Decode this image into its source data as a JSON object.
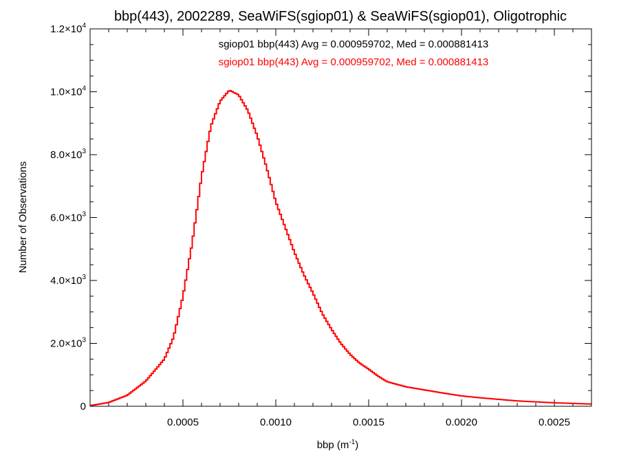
{
  "chart_data": {
    "type": "histogram",
    "title": "bbp(443), 2002289, SeaWiFS(sgiop01) & SeaWiFS(sgiop01), Oligotrophic",
    "xlabel": "bbp (m",
    "xlabel_sup": "-1",
    "xlabel_close": ")",
    "ylabel": "Number of Observations",
    "xlim": [
      0.0,
      0.0027
    ],
    "ylim": [
      0,
      12000
    ],
    "grid": false,
    "legend_position": "top-right",
    "x_ticks": [
      {
        "value": 0.0005,
        "label": "0.0005"
      },
      {
        "value": 0.001,
        "label": "0.0010"
      },
      {
        "value": 0.0015,
        "label": "0.0015"
      },
      {
        "value": 0.002,
        "label": "0.0020"
      },
      {
        "value": 0.0025,
        "label": "0.0025"
      }
    ],
    "y_ticks": [
      {
        "value": 0,
        "mant": "0",
        "exp": ""
      },
      {
        "value": 2000,
        "mant": "2.0×10",
        "exp": "3"
      },
      {
        "value": 4000,
        "mant": "4.0×10",
        "exp": "3"
      },
      {
        "value": 6000,
        "mant": "6.0×10",
        "exp": "3"
      },
      {
        "value": 8000,
        "mant": "8.0×10",
        "exp": "3"
      },
      {
        "value": 10000,
        "mant": "1.0×10",
        "exp": "4"
      },
      {
        "value": 12000,
        "mant": "1.2×10",
        "exp": "4"
      }
    ],
    "annotations": [
      {
        "text": "sgiop01 bbp(443) Avg = 0.000959702, Med = 0.000881413",
        "color": "#000000"
      },
      {
        "text": "sgiop01 bbp(443) Avg = 0.000959702, Med = 0.000881413",
        "color": "#ff0000"
      }
    ],
    "series": [
      {
        "color": "#ff0000",
        "x": [
          0.0,
          0.0001,
          0.0002,
          0.0003,
          0.0004,
          0.00045,
          0.0005,
          0.00055,
          0.0006,
          0.00065,
          0.0007,
          0.00075,
          0.0008,
          0.00085,
          0.0009,
          0.00095,
          0.001,
          0.00105,
          0.0011,
          0.00115,
          0.0012,
          0.00125,
          0.0013,
          0.00135,
          0.0014,
          0.00145,
          0.0015,
          0.00155,
          0.0016,
          0.0017,
          0.0018,
          0.0019,
          0.002,
          0.0021,
          0.0022,
          0.0023,
          0.0024,
          0.0025,
          0.0026,
          0.0027
        ],
        "y": [
          20,
          120,
          350,
          800,
          1500,
          2200,
          3500,
          5200,
          7300,
          8900,
          9700,
          10050,
          9900,
          9400,
          8600,
          7600,
          6500,
          5700,
          4900,
          4200,
          3600,
          2950,
          2450,
          2000,
          1650,
          1380,
          1180,
          960,
          780,
          620,
          520,
          420,
          330,
          270,
          220,
          170,
          140,
          110,
          90,
          70
        ]
      }
    ]
  },
  "colors": {
    "axis": "#000000",
    "series": "#ff0000",
    "background": "#ffffff"
  }
}
